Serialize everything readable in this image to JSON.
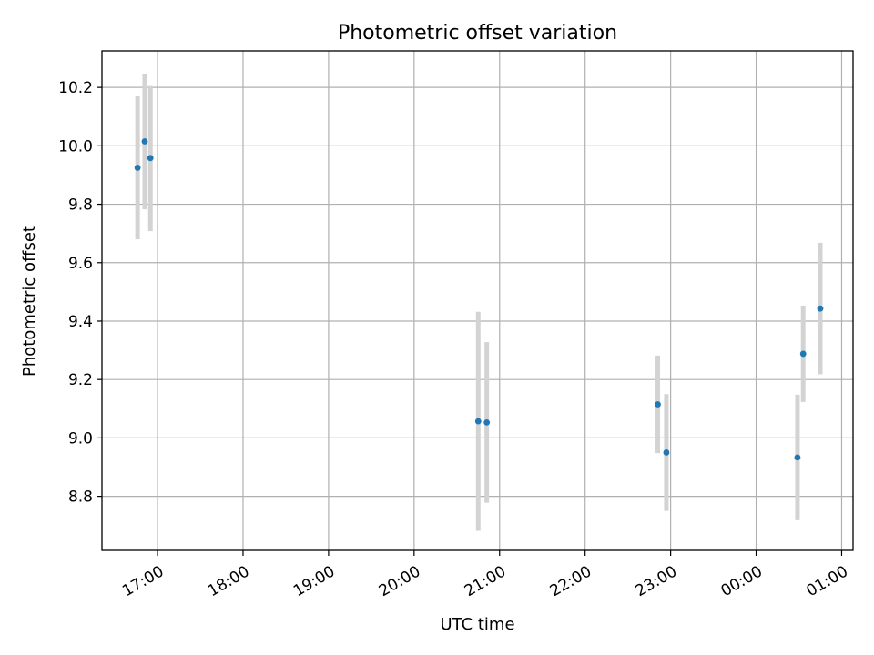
{
  "chart_data": {
    "type": "scatter",
    "title": "Photometric offset variation",
    "xlabel": "UTC time",
    "ylabel": "Photometric offset",
    "x_axis_type": "time",
    "xlim": [
      "16:21",
      "01:08"
    ],
    "ylim": [
      8.615,
      10.325
    ],
    "x_ticks": [
      "17:00",
      "18:00",
      "19:00",
      "20:00",
      "21:00",
      "22:00",
      "23:00",
      "00:00",
      "01:00"
    ],
    "y_ticks": [
      8.8,
      9.0,
      9.2,
      9.4,
      9.6,
      9.8,
      10.0,
      10.2
    ],
    "y_tick_labels": [
      "8.8",
      "9.0",
      "9.2",
      "9.4",
      "9.6",
      "9.8",
      "10.0",
      "10.2"
    ],
    "grid": true,
    "marker_color": "#1f77b4",
    "errorbar_color": "#d3d3d3",
    "points": [
      {
        "x": "16:46",
        "y": 9.925,
        "yerr": 0.245
      },
      {
        "x": "16:51",
        "y": 10.015,
        "yerr": 0.232
      },
      {
        "x": "16:55",
        "y": 9.958,
        "yerr": 0.25
      },
      {
        "x": "20:45",
        "y": 9.057,
        "yerr": 0.375
      },
      {
        "x": "20:51",
        "y": 9.053,
        "yerr": 0.275
      },
      {
        "x": "22:51",
        "y": 9.115,
        "yerr": 0.167
      },
      {
        "x": "22:57",
        "y": 8.95,
        "yerr": 0.2
      },
      {
        "x": "00:29",
        "y": 8.933,
        "yerr": 0.215
      },
      {
        "x": "00:33",
        "y": 9.288,
        "yerr": 0.165
      },
      {
        "x": "00:45",
        "y": 9.443,
        "yerr": 0.225
      }
    ]
  }
}
